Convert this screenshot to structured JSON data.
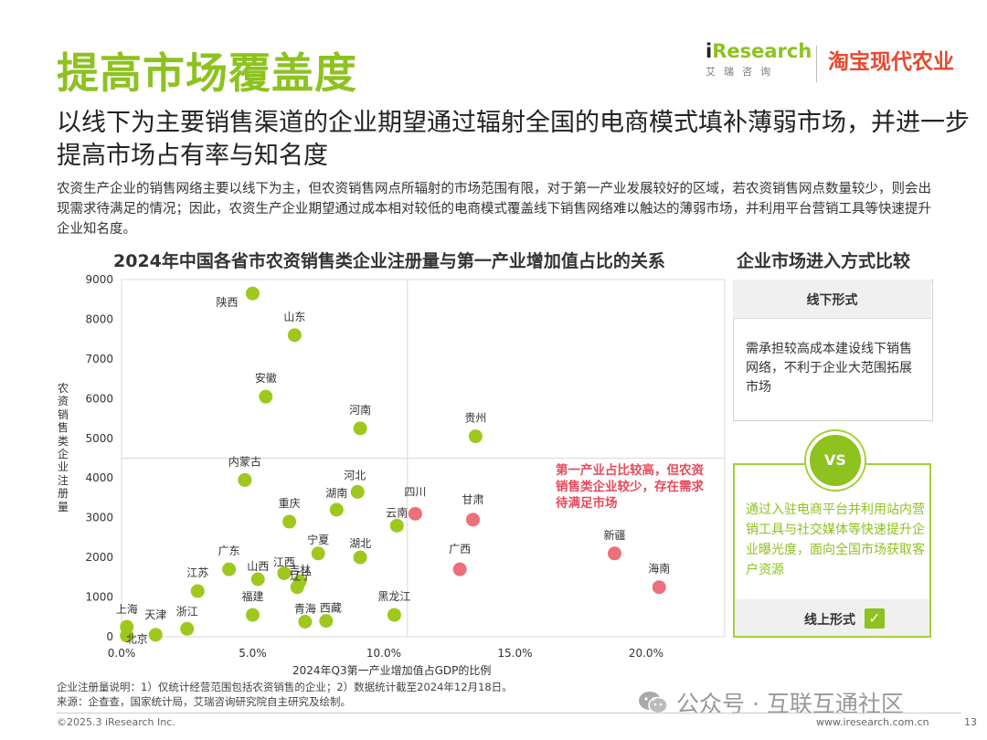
{
  "header": {
    "title": "提高市场覆盖度",
    "logo_ir_prefix": "i",
    "logo_ir_word": "Research",
    "logo_ir_sub": "艾瑞咨询",
    "logo_tb": "淘宝现代农业"
  },
  "subtitle": "以线下为主要销售渠道的企业期望通过辐射全国的电商模式填补薄弱市场，并进一步提高市场占有率与知名度",
  "description": "农资生产企业的销售网络主要以线下为主，但农资销售网点所辐射的市场范围有限，对于第一产业发展较好的区域，若农资销售网点数量较少，则会出现需求待满足的情况；因此，农资生产企业期望通过成本相对较低的电商模式覆盖线下销售网络难以触达的薄弱市场，并利用平台营销工具等快速提升企业知名度。",
  "chart_title": "2024年中国各省市农资销售类企业注册量与第一产业增加值占比的关系",
  "compare_title": "企业市场进入方式比较",
  "compare": {
    "offline_label": "线下形式",
    "offline_text": "需承担较高成本建设线下销售网络，不利于企业大范围拓展市场",
    "vs": "VS",
    "online_text": "通过入驻电商平台并利用站内营销工具与社交媒体等快速提升企业曝光度，面向全国市场获取客户资源",
    "online_label": "线上形式",
    "check": "✓"
  },
  "chart_data": {
    "type": "scatter",
    "title": "2024年中国各省市农资销售类企业注册量与第一产业增加值占比的关系",
    "xlabel": "2024年Q3第一产业增加值占GDP的比例",
    "ylabel": "农资销售类企业注册量",
    "xlim": [
      0,
      0.23
    ],
    "ylim": [
      0,
      9000
    ],
    "xticks": [
      0,
      0.05,
      0.1,
      0.15,
      0.2
    ],
    "xtick_labels": [
      "0.0%",
      "5.0%",
      "10.0%",
      "15.0%",
      "20.0%"
    ],
    "yticks": [
      0,
      1000,
      2000,
      3000,
      4000,
      5000,
      6000,
      7000,
      8000,
      9000
    ],
    "ytick_labels": [
      "0",
      "1000",
      "2000",
      "3000",
      "4000",
      "5000",
      "6000",
      "7000",
      "8000",
      "9000"
    ],
    "reference_lines": {
      "x": 0.109,
      "y": 4500
    },
    "colors": {
      "normal": "#9ec81e",
      "highlight": "#ec6f7c"
    },
    "annotation": "第一产业占比较高，但农资销售类企业较少，存在需求待满足市场",
    "points": [
      {
        "name": "陕西",
        "x": 0.05,
        "y": 8650,
        "group": "normal"
      },
      {
        "name": "山东",
        "x": 0.066,
        "y": 7600,
        "group": "normal"
      },
      {
        "name": "安徽",
        "x": 0.055,
        "y": 6050,
        "group": "normal"
      },
      {
        "name": "河南",
        "x": 0.091,
        "y": 5250,
        "group": "normal"
      },
      {
        "name": "贵州",
        "x": 0.135,
        "y": 5050,
        "group": "normal"
      },
      {
        "name": "内蒙古",
        "x": 0.047,
        "y": 3950,
        "group": "normal"
      },
      {
        "name": "河北",
        "x": 0.09,
        "y": 3650,
        "group": "normal"
      },
      {
        "name": "湖南",
        "x": 0.082,
        "y": 3200,
        "group": "normal"
      },
      {
        "name": "重庆",
        "x": 0.064,
        "y": 2900,
        "group": "normal"
      },
      {
        "name": "云南",
        "x": 0.105,
        "y": 2800,
        "group": "normal"
      },
      {
        "name": "宁夏",
        "x": 0.075,
        "y": 2100,
        "group": "normal"
      },
      {
        "name": "湖北",
        "x": 0.091,
        "y": 2000,
        "group": "normal"
      },
      {
        "name": "广东",
        "x": 0.041,
        "y": 1700,
        "group": "normal"
      },
      {
        "name": "山西",
        "x": 0.052,
        "y": 1450,
        "group": "normal"
      },
      {
        "name": "江西",
        "x": 0.062,
        "y": 1600,
        "group": "normal"
      },
      {
        "name": "吉林",
        "x": 0.068,
        "y": 1400,
        "group": "normal"
      },
      {
        "name": "辽宁",
        "x": 0.067,
        "y": 1250,
        "group": "normal"
      },
      {
        "name": "江苏",
        "x": 0.029,
        "y": 1150,
        "group": "normal"
      },
      {
        "name": "福建",
        "x": 0.05,
        "y": 550,
        "group": "normal"
      },
      {
        "name": "青海",
        "x": 0.07,
        "y": 380,
        "group": "normal"
      },
      {
        "name": "西藏",
        "x": 0.078,
        "y": 400,
        "group": "normal"
      },
      {
        "name": "黑龙江",
        "x": 0.104,
        "y": 550,
        "group": "normal"
      },
      {
        "name": "上海",
        "x": 0.002,
        "y": 250,
        "group": "normal"
      },
      {
        "name": "天津",
        "x": 0.013,
        "y": 50,
        "group": "normal"
      },
      {
        "name": "浙江",
        "x": 0.025,
        "y": 200,
        "group": "normal"
      },
      {
        "name": "北京",
        "x": 0.002,
        "y": 30,
        "group": "normal"
      },
      {
        "name": "四川",
        "x": 0.112,
        "y": 3100,
        "group": "highlight"
      },
      {
        "name": "甘肃",
        "x": 0.134,
        "y": 2950,
        "group": "highlight"
      },
      {
        "name": "广西",
        "x": 0.129,
        "y": 1700,
        "group": "highlight"
      },
      {
        "name": "新疆",
        "x": 0.188,
        "y": 2100,
        "group": "highlight"
      },
      {
        "name": "海南",
        "x": 0.205,
        "y": 1250,
        "group": "highlight"
      }
    ]
  },
  "footer": {
    "note": "企业注册量说明：1）仅统计经营范围包括农资销售的企业；2）数据统计截至2024年12月18日。",
    "source": "来源：企查查，国家统计局，艾瑞咨询研究院自主研究及绘制。",
    "copyright": "©2025.3 iResearch Inc.",
    "watermark": "公众号 · 互联互通社区",
    "url": "www.iresearch.com.cn",
    "page": "13"
  }
}
